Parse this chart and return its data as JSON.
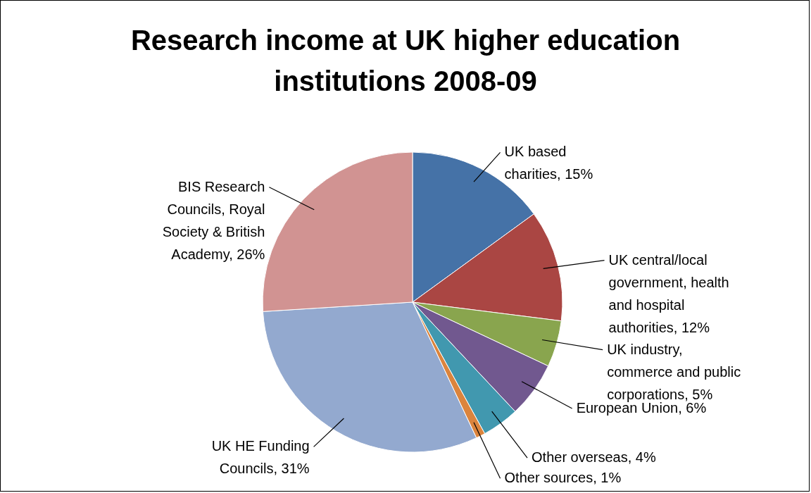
{
  "chart_data": {
    "type": "pie",
    "title": "Research income at UK higher education institutions 2008-09",
    "categories": [
      "UK based charities",
      "UK central/local government, health and hospital authorities",
      "UK industry, commerce and public corporations",
      "European Union",
      "Other overseas",
      "Other sources",
      "UK HE Funding Councils",
      "BIS Research Councils, Royal Society & British Academy"
    ],
    "values": [
      15,
      12,
      5,
      6,
      4,
      1,
      31,
      26
    ],
    "colors": [
      "#4572a7",
      "#aa4643",
      "#89a54e",
      "#71588f",
      "#4198af",
      "#db843d",
      "#93a9cf",
      "#d19392"
    ],
    "value_labels": [
      "15%",
      "12%",
      "5%",
      "6%",
      "4%",
      "1%",
      "31%",
      "26%"
    ]
  }
}
